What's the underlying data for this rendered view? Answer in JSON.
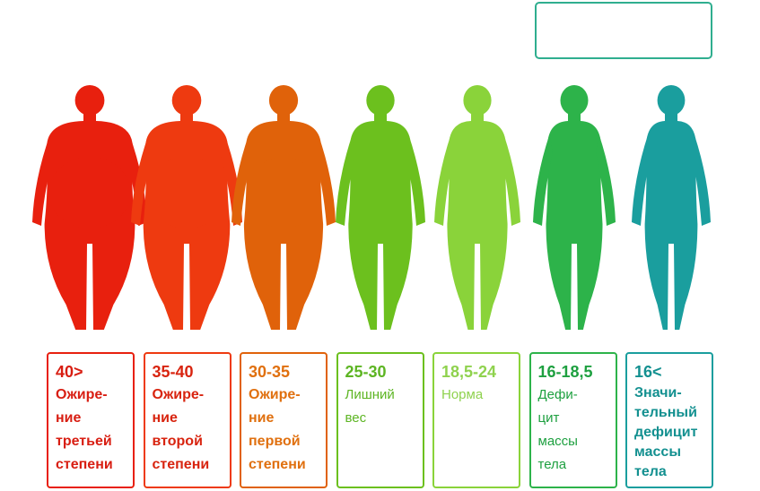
{
  "items": [
    {
      "range": "40>",
      "lines": [
        "Ожире-",
        "ние",
        "третьей",
        "степени"
      ],
      "color": "#e8200e",
      "text_color": "#d81e12"
    },
    {
      "range": "35-40",
      "lines": [
        "Ожире-",
        "ние",
        "второй",
        "степени"
      ],
      "color": "#ee3a10",
      "text_color": "#d8240f"
    },
    {
      "range": "30-35",
      "lines": [
        "Ожире-",
        "ние",
        "первой",
        "степени"
      ],
      "color": "#e0620a",
      "text_color": "#e0700f"
    },
    {
      "range": "25-30",
      "lines": [
        "Лишний",
        "вес"
      ],
      "color": "#6cc01e",
      "text_color": "#5db523"
    },
    {
      "range": "18,5-24",
      "lines": [
        "Норма"
      ],
      "color": "#8ad33a",
      "text_color": "#8fd24e"
    },
    {
      "range": "16-18,5",
      "lines": [
        "Дефи-",
        "цит",
        "массы",
        "тела"
      ],
      "color": "#2db34a",
      "text_color": "#1ea040"
    },
    {
      "range": "16<",
      "lines": [
        "Значи-",
        "тельный",
        "дефицит",
        "массы",
        "тела"
      ],
      "color": "#1a9e9e",
      "text_color": "#139090"
    }
  ]
}
